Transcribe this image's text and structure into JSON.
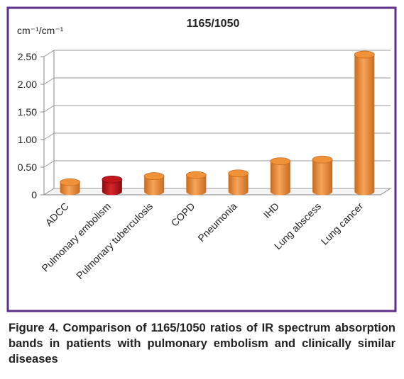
{
  "chart_data": {
    "type": "bar3d",
    "title": "1165/1050",
    "y_label": "cm⁻¹/cm⁻¹",
    "categories": [
      "ADCC",
      "Pulmonary embolism",
      "Pulmonary tuberculosis",
      "COPD",
      "Pneumonia",
      "IHD",
      "Lung abscess",
      "Lung cancer"
    ],
    "values": [
      0.17,
      0.22,
      0.28,
      0.3,
      0.33,
      0.55,
      0.58,
      2.48
    ],
    "colors": [
      "#f0923a",
      "#c0161c",
      "#f0923a",
      "#f0923a",
      "#f0923a",
      "#f0923a",
      "#f0923a",
      "#f0923a"
    ],
    "ylim": [
      0,
      2.5
    ],
    "yticks": [
      0,
      {
        "value": 0.5,
        "label": "0.50"
      },
      {
        "value": 1,
        "label": "1.00"
      },
      {
        "value": 1.5,
        "label": "1.50"
      },
      {
        "value": 2,
        "label": "2.00"
      },
      {
        "value": 2.5,
        "label": "2.50"
      }
    ],
    "grid": true
  },
  "caption": "Figure 4. Comparison of 1165/1050 ratios of IR spectrum absorption bands in patients with pulmonary embolism and clinically similar diseases"
}
